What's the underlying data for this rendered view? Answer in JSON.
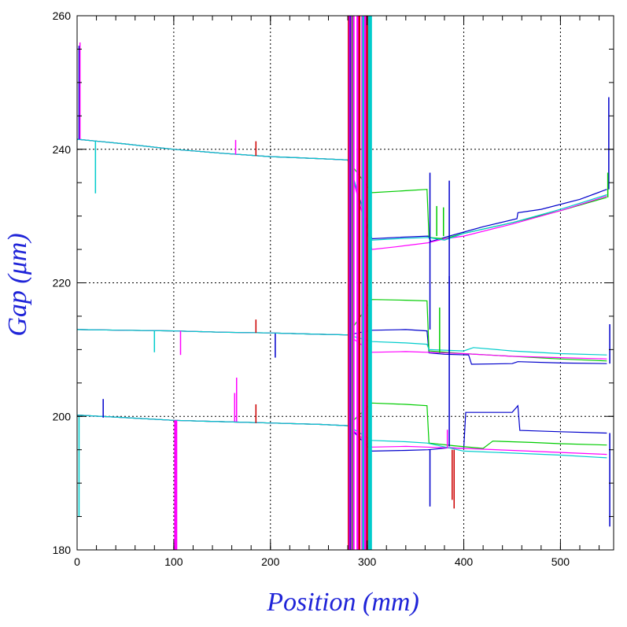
{
  "chart_data": {
    "type": "line",
    "title": "",
    "xlabel": "Position (mm)",
    "ylabel": "Gap (μm)",
    "xlim": [
      0,
      555
    ],
    "ylim": [
      180,
      260
    ],
    "xticks": [
      0,
      100,
      200,
      300,
      400,
      500
    ],
    "yticks": [
      180,
      200,
      220,
      240,
      260
    ],
    "x_tick_labels": [
      "0",
      "100",
      "200",
      "300",
      "400",
      "500"
    ],
    "y_tick_labels": [
      "180",
      "200",
      "220",
      "240",
      "260"
    ],
    "grid": true,
    "legend": "none",
    "series": [
      {
        "color": "#0000cc",
        "points": [
          [
            0,
            241.5
          ],
          [
            50,
            240.8
          ],
          [
            100,
            240.0
          ],
          [
            150,
            239.4
          ],
          [
            200,
            238.9
          ],
          [
            250,
            238.6
          ],
          [
            280,
            238.4
          ],
          [
            305,
            226.6
          ],
          [
            330,
            226.8
          ],
          [
            363,
            227.0
          ],
          [
            366,
            226.2
          ],
          [
            380,
            226.8
          ],
          [
            400,
            227.6
          ],
          [
            420,
            228.4
          ],
          [
            455,
            229.6
          ],
          [
            456,
            230.5
          ],
          [
            480,
            231.0
          ],
          [
            520,
            232.5
          ],
          [
            548,
            234.0
          ]
        ]
      },
      {
        "color": "#00cc00",
        "points": [
          [
            0,
            241.5
          ],
          [
            50,
            240.8
          ],
          [
            100,
            240.0
          ],
          [
            150,
            239.4
          ],
          [
            200,
            238.9
          ],
          [
            250,
            238.6
          ],
          [
            280,
            238.4
          ],
          [
            305,
            233.5
          ],
          [
            340,
            233.8
          ],
          [
            362,
            234.0
          ],
          [
            364,
            226.8
          ],
          [
            380,
            226.6
          ],
          [
            400,
            227.4
          ],
          [
            450,
            229.0
          ],
          [
            500,
            230.8
          ],
          [
            548,
            232.8
          ]
        ]
      },
      {
        "color": "#ff00ff",
        "points": [
          [
            0,
            241.5
          ],
          [
            50,
            240.8
          ],
          [
            100,
            240.0
          ],
          [
            150,
            239.4
          ],
          [
            200,
            238.9
          ],
          [
            250,
            238.6
          ],
          [
            280,
            238.4
          ],
          [
            305,
            225.0
          ],
          [
            330,
            225.4
          ],
          [
            363,
            226.0
          ],
          [
            380,
            226.6
          ],
          [
            400,
            227.0
          ],
          [
            450,
            228.8
          ],
          [
            500,
            230.8
          ],
          [
            548,
            233.0
          ]
        ]
      },
      {
        "color": "#00cccc",
        "points": [
          [
            0,
            241.5
          ],
          [
            50,
            240.8
          ],
          [
            100,
            240.0
          ],
          [
            150,
            239.4
          ],
          [
            200,
            238.9
          ],
          [
            250,
            238.6
          ],
          [
            280,
            238.4
          ],
          [
            305,
            226.4
          ],
          [
            330,
            226.6
          ],
          [
            363,
            226.8
          ],
          [
            380,
            226.4
          ],
          [
            400,
            227.4
          ],
          [
            450,
            229.0
          ],
          [
            500,
            231.0
          ],
          [
            548,
            233.2
          ]
        ]
      },
      {
        "color": "#0000cc",
        "points": [
          [
            0,
            213.0
          ],
          [
            50,
            212.9
          ],
          [
            100,
            212.8
          ],
          [
            150,
            212.6
          ],
          [
            200,
            212.5
          ],
          [
            250,
            212.3
          ],
          [
            280,
            212.2
          ],
          [
            305,
            212.9
          ],
          [
            340,
            213.0
          ],
          [
            362,
            212.8
          ],
          [
            364,
            209.5
          ],
          [
            380,
            209.3
          ],
          [
            405,
            209.2
          ],
          [
            408,
            207.8
          ],
          [
            450,
            207.9
          ],
          [
            456,
            208.2
          ],
          [
            500,
            208.0
          ],
          [
            548,
            207.9
          ]
        ]
      },
      {
        "color": "#00cc00",
        "points": [
          [
            0,
            213.0
          ],
          [
            50,
            212.9
          ],
          [
            100,
            212.8
          ],
          [
            150,
            212.6
          ],
          [
            200,
            212.5
          ],
          [
            250,
            212.3
          ],
          [
            280,
            212.2
          ],
          [
            305,
            217.5
          ],
          [
            340,
            217.4
          ],
          [
            362,
            217.3
          ],
          [
            364,
            209.8
          ],
          [
            400,
            209.4
          ],
          [
            450,
            209.0
          ],
          [
            500,
            208.6
          ],
          [
            548,
            208.3
          ]
        ]
      },
      {
        "color": "#ff00ff",
        "points": [
          [
            0,
            213.0
          ],
          [
            50,
            212.9
          ],
          [
            100,
            212.8
          ],
          [
            150,
            212.6
          ],
          [
            200,
            212.5
          ],
          [
            250,
            212.3
          ],
          [
            280,
            212.2
          ],
          [
            305,
            209.6
          ],
          [
            340,
            209.7
          ],
          [
            362,
            209.6
          ],
          [
            400,
            209.4
          ],
          [
            450,
            209.0
          ],
          [
            500,
            208.8
          ],
          [
            548,
            208.6
          ]
        ]
      },
      {
        "color": "#00cccc",
        "points": [
          [
            0,
            213.0
          ],
          [
            50,
            212.9
          ],
          [
            100,
            212.8
          ],
          [
            150,
            212.6
          ],
          [
            200,
            212.5
          ],
          [
            250,
            212.3
          ],
          [
            280,
            212.2
          ],
          [
            305,
            211.2
          ],
          [
            340,
            211.0
          ],
          [
            362,
            210.8
          ],
          [
            364,
            210.0
          ],
          [
            400,
            209.8
          ],
          [
            410,
            210.3
          ],
          [
            450,
            209.8
          ],
          [
            500,
            209.4
          ],
          [
            548,
            209.2
          ]
        ]
      },
      {
        "color": "#0000cc",
        "points": [
          [
            0,
            200.2
          ],
          [
            50,
            199.8
          ],
          [
            100,
            199.4
          ],
          [
            150,
            199.2
          ],
          [
            200,
            199.0
          ],
          [
            250,
            198.8
          ],
          [
            280,
            198.6
          ],
          [
            305,
            194.8
          ],
          [
            340,
            194.9
          ],
          [
            363,
            195.0
          ],
          [
            385,
            195.3
          ],
          [
            400,
            195.2
          ],
          [
            402,
            200.6
          ],
          [
            450,
            200.6
          ],
          [
            456,
            201.6
          ],
          [
            458,
            197.9
          ],
          [
            500,
            197.7
          ],
          [
            548,
            197.5
          ]
        ]
      },
      {
        "color": "#00cc00",
        "points": [
          [
            0,
            200.2
          ],
          [
            50,
            199.8
          ],
          [
            100,
            199.4
          ],
          [
            150,
            199.2
          ],
          [
            200,
            199.0
          ],
          [
            250,
            198.8
          ],
          [
            280,
            198.6
          ],
          [
            305,
            202.0
          ],
          [
            340,
            201.8
          ],
          [
            362,
            201.6
          ],
          [
            364,
            196.0
          ],
          [
            390,
            195.6
          ],
          [
            420,
            195.2
          ],
          [
            430,
            196.3
          ],
          [
            470,
            196.1
          ],
          [
            500,
            195.9
          ],
          [
            548,
            195.7
          ]
        ]
      },
      {
        "color": "#ff00ff",
        "points": [
          [
            0,
            200.2
          ],
          [
            50,
            199.8
          ],
          [
            100,
            199.4
          ],
          [
            150,
            199.2
          ],
          [
            200,
            199.0
          ],
          [
            250,
            198.8
          ],
          [
            280,
            198.6
          ],
          [
            305,
            195.4
          ],
          [
            340,
            195.5
          ],
          [
            362,
            195.4
          ],
          [
            400,
            195.2
          ],
          [
            450,
            194.9
          ],
          [
            500,
            194.6
          ],
          [
            548,
            194.3
          ]
        ]
      },
      {
        "color": "#00cccc",
        "points": [
          [
            0,
            200.2
          ],
          [
            50,
            199.8
          ],
          [
            100,
            199.4
          ],
          [
            150,
            199.2
          ],
          [
            200,
            199.0
          ],
          [
            250,
            198.8
          ],
          [
            280,
            198.6
          ],
          [
            305,
            196.4
          ],
          [
            340,
            196.2
          ],
          [
            362,
            196.0
          ],
          [
            400,
            194.8
          ],
          [
            450,
            194.5
          ],
          [
            500,
            194.2
          ],
          [
            548,
            193.8
          ]
        ]
      }
    ],
    "spikes": [
      {
        "color": "#ff00ff",
        "x": 101,
        "y_from": 199.4,
        "y_to": 180
      },
      {
        "color": "#ff00ff",
        "x": 102,
        "y_from": 199.4,
        "y_to": 180
      },
      {
        "color": "#ff00ff",
        "x": 103,
        "y_from": 199.4,
        "y_to": 180
      },
      {
        "color": "#00cccc",
        "x": 19,
        "y_from": 241.2,
        "y_to": 233.4
      },
      {
        "color": "#cc0000",
        "x": 185,
        "y_from": 239.0,
        "y_to": 241.2
      },
      {
        "color": "#ff00ff",
        "x": 164,
        "y_from": 239.2,
        "y_to": 241.4
      },
      {
        "color": "#cc0000",
        "x": 185,
        "y_from": 212.5,
        "y_to": 214.5
      },
      {
        "color": "#0000cc",
        "x": 205,
        "y_from": 212.4,
        "y_to": 208.8
      },
      {
        "color": "#ff00ff",
        "x": 107,
        "y_from": 212.8,
        "y_to": 209.2
      },
      {
        "color": "#00cccc",
        "x": 80,
        "y_from": 212.9,
        "y_to": 209.6
      },
      {
        "color": "#ff00ff",
        "x": 163,
        "y_from": 199.2,
        "y_to": 203.5
      },
      {
        "color": "#ff00ff",
        "x": 165,
        "y_from": 199.2,
        "y_to": 205.8
      },
      {
        "color": "#cc0000",
        "x": 185,
        "y_from": 199.0,
        "y_to": 201.8
      },
      {
        "color": "#0000cc",
        "x": 27,
        "y_from": 199.8,
        "y_to": 202.6
      },
      {
        "color": "#0000cc",
        "x": 365,
        "y_from": 213.0,
        "y_to": 236.5
      },
      {
        "color": "#0000cc",
        "x": 385,
        "y_from": 209.5,
        "y_to": 235.3
      },
      {
        "color": "#0000cc",
        "x": 385,
        "y_from": 195.5,
        "y_to": 221.0
      },
      {
        "color": "#00cc00",
        "x": 372,
        "y_from": 227.0,
        "y_to": 231.5
      },
      {
        "color": "#00cc00",
        "x": 379,
        "y_from": 227.0,
        "y_to": 231.3
      },
      {
        "color": "#00cc00",
        "x": 375,
        "y_from": 209.5,
        "y_to": 216.3
      },
      {
        "color": "#0000cc",
        "x": 365,
        "y_from": 195.0,
        "y_to": 186.5
      },
      {
        "color": "#cc0000",
        "x": 390,
        "y_from": 195.0,
        "y_to": 186.2
      },
      {
        "color": "#cc0000",
        "x": 388,
        "y_from": 195.0,
        "y_to": 187.5
      },
      {
        "color": "#ff00ff",
        "x": 383,
        "y_from": 195.2,
        "y_to": 198.0
      },
      {
        "color": "#0000cc",
        "x": 2,
        "y_from": 241.5,
        "y_to": 255.5
      },
      {
        "color": "#ff00ff",
        "x": 3,
        "y_from": 241.5,
        "y_to": 256.0
      },
      {
        "color": "#00cccc",
        "x": 2,
        "y_from": 200.0,
        "y_to": 185.0
      },
      {
        "color": "#0000cc",
        "x": 550,
        "y_from": 234.0,
        "y_to": 247.8
      },
      {
        "color": "#0000cc",
        "x": 551,
        "y_from": 207.9,
        "y_to": 213.8
      },
      {
        "color": "#0000cc",
        "x": 551,
        "y_from": 197.5,
        "y_to": 183.5
      },
      {
        "color": "#00cc00",
        "x": 549,
        "y_from": 232.8,
        "y_to": 236.5
      }
    ],
    "vertical_lines": [
      {
        "color": "#cc0000",
        "x": 281
      },
      {
        "color": "#ff00ff",
        "x": 282
      },
      {
        "color": "#0000cc",
        "x": 283
      },
      {
        "color": "#ff00ff",
        "x": 284
      },
      {
        "color": "#00cc00",
        "x": 285
      },
      {
        "color": "#ff00ff",
        "x": 286
      },
      {
        "color": "#ff00ff",
        "x": 290
      },
      {
        "color": "#cc0000",
        "x": 292
      },
      {
        "color": "#ff00ff",
        "x": 295
      },
      {
        "color": "#00cccc",
        "x": 296
      },
      {
        "color": "#ff00ff",
        "x": 298
      },
      {
        "color": "#cc0000",
        "x": 300
      },
      {
        "color": "#00cccc",
        "x": 302
      },
      {
        "color": "#00cccc",
        "x": 303
      },
      {
        "color": "#00cccc",
        "x": 304
      }
    ]
  }
}
